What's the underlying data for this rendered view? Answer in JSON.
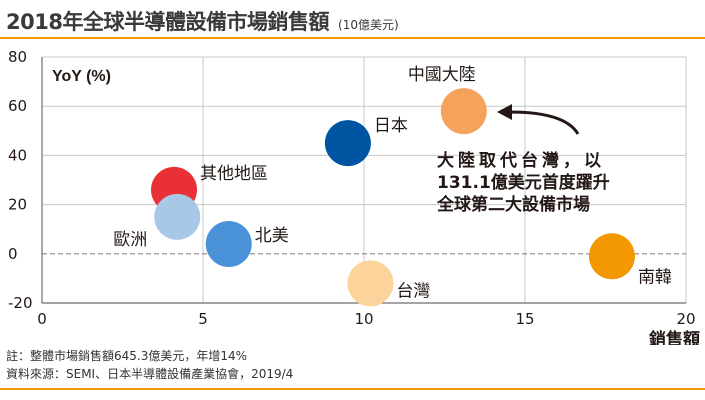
{
  "header": {
    "title": "2018年全球半導體設備市場銷售額",
    "unit": "(10億美元)"
  },
  "notes": {
    "note": "註：整體市場銷售額645.3億美元，年增14%",
    "source": "資料來源：SEMI、日本半導體設備產業協會，2019/4"
  },
  "annotation": {
    "lines": [
      "大陸取代台灣，以",
      "131.1億美元首度躍升",
      "全球第二大設備市場"
    ]
  },
  "colors": {
    "accent": "#f39800",
    "grid": "#c8c8c8"
  },
  "chart_data": {
    "type": "scatter",
    "title": "2018年全球半導體設備市場銷售額",
    "xlabel": "銷售額",
    "ylabel": "YoY (%)",
    "xlim": [
      0,
      20
    ],
    "ylim": [
      -20,
      80
    ],
    "xticks": [
      0,
      5,
      10,
      15,
      20
    ],
    "yticks": [
      -20,
      0,
      20,
      40,
      60,
      80
    ],
    "grid": true,
    "points": [
      {
        "label": "中國大陸",
        "x": 13.1,
        "y": 58,
        "color": "#f5a25d"
      },
      {
        "label": "日本",
        "x": 9.5,
        "y": 45,
        "color": "#0055a2"
      },
      {
        "label": "其他地區",
        "x": 4.1,
        "y": 26,
        "color": "#e83036"
      },
      {
        "label": "歐洲",
        "x": 4.2,
        "y": 15,
        "color": "#a8c8e8"
      },
      {
        "label": "北美",
        "x": 5.8,
        "y": 4,
        "color": "#4a92d8"
      },
      {
        "label": "台灣",
        "x": 10.2,
        "y": -12,
        "color": "#fbd39b"
      },
      {
        "label": "南韓",
        "x": 17.7,
        "y": -1,
        "color": "#f39800"
      }
    ]
  }
}
